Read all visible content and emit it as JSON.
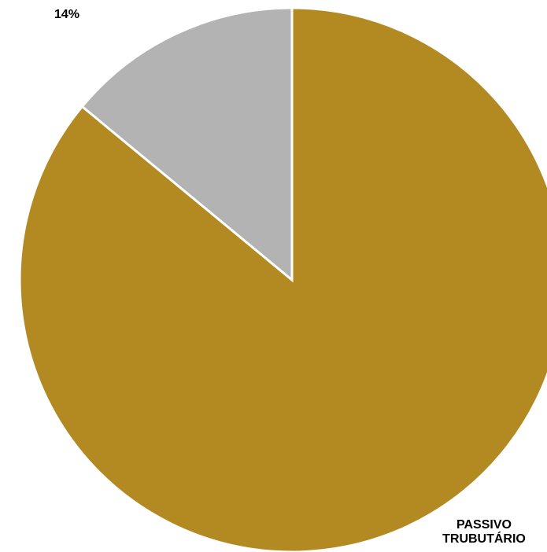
{
  "chart_data": {
    "type": "pie",
    "categories": [
      "PASSIVO TRUBUTÁRIO",
      null
    ],
    "values": [
      86,
      14
    ],
    "value_labels": [
      null,
      "14%"
    ],
    "colors": [
      "#b38a22",
      "#b3b3b3"
    ],
    "start": "top",
    "direction": "clockwise"
  }
}
